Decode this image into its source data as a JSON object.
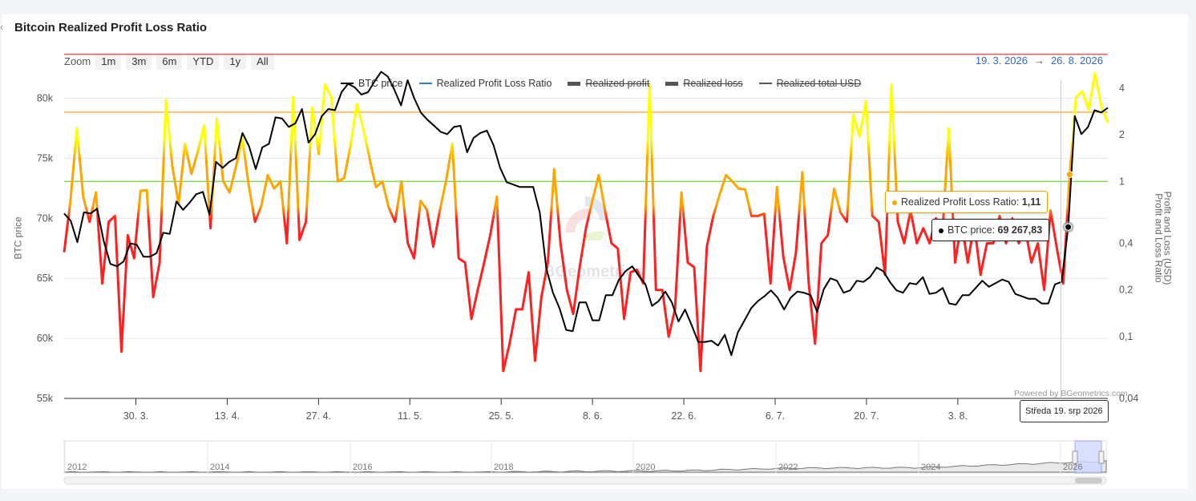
{
  "page": {
    "title": "Bitcoin Realized Profit Loss Ratio",
    "back_glyph": "‹",
    "zoom_label": "Zoom",
    "zoom_buttons": [
      "1m",
      "3m",
      "6m",
      "YTD",
      "1y",
      "All"
    ],
    "range_from": "19. 3. 2026",
    "range_arrow": "→",
    "range_to": "26. 8. 2026",
    "powered_by": "Powered by BGeometrics.com",
    "watermark": "BGeometrics"
  },
  "tooltip": {
    "ratio_label": "Realized Profit Loss Ratio:",
    "ratio_value": "1,11",
    "price_label": "BTC price:",
    "price_value": "69 267,83",
    "date": "Středa 19. srp 2026"
  },
  "colors": {
    "btc": "#000000",
    "ratio_line_legend": "#2f7ed8",
    "high": "#ffff00",
    "mid": "#ffa500",
    "low": "#ff0000",
    "band_red": "#ff5a5a",
    "band_orange": "#ffb347",
    "band_green": "#7ed957"
  },
  "chart_data": {
    "type": "line",
    "title": "Bitcoin Realized Profit Loss Ratio",
    "legend": [
      {
        "name": "BTC price",
        "color": "#000000",
        "visible": true
      },
      {
        "name": "Realized Profit Loss Ratio",
        "color": "#2f7ed8",
        "visible": true
      },
      {
        "name": "Realized profit",
        "color": "#555555",
        "visible": false
      },
      {
        "name": "Realized loss",
        "color": "#555555",
        "visible": false
      },
      {
        "name": "Realized total USD",
        "color": "#555555",
        "visible": false
      }
    ],
    "legend_position": "top-center",
    "x_ticks": [
      "30. 3.",
      "13. 4.",
      "27. 4.",
      "11. 5.",
      "25. 5.",
      "8. 6.",
      "22. 6.",
      "6. 7.",
      "20. 7.",
      "3. 8."
    ],
    "x_tick_days": [
      11,
      25,
      39,
      53,
      67,
      81,
      95,
      109,
      123,
      137
    ],
    "x_range_days": [
      0,
      160
    ],
    "y_left": {
      "label": "BTC price",
      "ticks": [
        "80k",
        "75k",
        "70k",
        "65k",
        "60k",
        "55k"
      ],
      "tick_values": [
        80000,
        75000,
        70000,
        65000,
        60000,
        55000
      ],
      "range": [
        55000,
        81500
      ]
    },
    "y_right": {
      "label": "Profit and Loss (USD)",
      "label2": "Profit and Loss Ratio",
      "scale": "log",
      "ticks": [
        "4",
        "2",
        "1",
        "0,4",
        "0,2",
        "0,1",
        "0,04"
      ],
      "tick_values": [
        4,
        2,
        1,
        0.4,
        0.2,
        0.1,
        0.04
      ],
      "range": [
        0.04,
        4.5
      ]
    },
    "bands": [
      {
        "value": 6.6,
        "color": "#ff5a5a"
      },
      {
        "value": 2.8,
        "color": "#ffb347"
      },
      {
        "value": 1.0,
        "color": "#7ed957"
      }
    ],
    "btc_price": [
      70400,
      69800,
      68000,
      70500,
      70400,
      70800,
      68100,
      66200,
      66000,
      66400,
      67900,
      67800,
      66800,
      66800,
      67100,
      68800,
      68700,
      71400,
      70700,
      71300,
      72000,
      72200,
      70300,
      74700,
      74200,
      74700,
      75000,
      77100,
      76000,
      74100,
      75900,
      76200,
      78400,
      78300,
      77600,
      77900,
      79100,
      76300,
      77000,
      78500,
      79100,
      79000,
      80500,
      81200,
      80900,
      80300,
      80500,
      81400,
      82200,
      81800,
      80700,
      79400,
      81500,
      80000,
      78800,
      78200,
      77700,
      77200,
      77000,
      77600,
      77700,
      75500,
      76700,
      77100,
      77300,
      76100,
      74200,
      73000,
      72800,
      72600,
      72600,
      72600,
      70500,
      65800,
      63800,
      62500,
      60700,
      60600,
      63000,
      63000,
      61500,
      61500,
      63600,
      63600,
      64900,
      65600,
      66000,
      65200,
      64500,
      62700,
      63100,
      63900,
      63000,
      61400,
      62400,
      61100,
      59700,
      59700,
      59800,
      59400,
      60300,
      58600,
      60500,
      61500,
      62500,
      63100,
      63500,
      64000,
      63400,
      62400,
      63400,
      63900,
      63800,
      63600,
      62200,
      64100,
      65000,
      64800,
      63800,
      64000,
      64800,
      64700,
      65100,
      65900,
      65600,
      64700,
      64000,
      63800,
      64600,
      64500,
      65100,
      63700,
      63800,
      64200,
      62900,
      62800,
      63600,
      63600,
      64200,
      64800,
      64300,
      64600,
      64900,
      64700,
      63700,
      63500,
      63300,
      63300,
      62900,
      62900,
      64500,
      64700,
      69268,
      78500,
      77000,
      77600,
      79000,
      78800,
      79200
    ],
    "ratio": [
      0.35,
      0.75,
      2.2,
      0.8,
      0.55,
      0.85,
      0.22,
      0.55,
      0.6,
      0.08,
      0.45,
      0.32,
      0.87,
      0.88,
      0.18,
      0.3,
      3.35,
      1.25,
      0.72,
      1.75,
      1.12,
      1.55,
      2.3,
      0.5,
      2.55,
      1.0,
      0.85,
      1.25,
      1.9,
      0.95,
      0.55,
      0.7,
      1.1,
      0.9,
      1.0,
      0.4,
      3.5,
      0.42,
      0.55,
      3.0,
      1.5,
      4.2,
      3.5,
      1.0,
      1.05,
      1.7,
      3.15,
      2.2,
      1.4,
      0.92,
      1.0,
      0.68,
      0.55,
      1.0,
      0.4,
      0.32,
      0.75,
      0.66,
      0.38,
      0.64,
      1.0,
      1.75,
      0.32,
      0.3,
      0.13,
      0.2,
      0.3,
      0.46,
      0.8,
      0.06,
      0.09,
      0.15,
      0.15,
      0.26,
      0.07,
      0.18,
      0.3,
      1.2,
      0.4,
      0.2,
      0.14,
      0.28,
      0.5,
      0.75,
      1.1,
      0.65,
      0.4,
      0.37,
      0.13,
      0.26,
      0.27,
      0.22,
      4.2,
      0.2,
      0.2,
      0.1,
      0.15,
      0.85,
      0.3,
      0.28,
      0.06,
      0.38,
      0.6,
      0.82,
      1.1,
      1.0,
      0.9,
      0.89,
      0.6,
      0.6,
      0.62,
      0.22,
      0.92,
      0.33,
      0.2,
      0.35,
      1.15,
      0.22,
      0.09,
      0.4,
      0.45,
      0.9,
      0.63,
      0.55,
      2.7,
      1.95,
      3.3,
      0.6,
      0.55,
      0.25,
      4.2,
      0.55,
      0.4,
      0.65,
      0.4,
      0.5,
      0.4,
      0.58,
      0.45,
      2.2,
      0.3,
      0.55,
      0.3,
      0.53,
      0.25,
      0.4,
      0.4,
      0.6,
      0.4,
      0.58,
      0.4,
      0.5,
      0.3,
      0.4,
      0.2,
      0.65,
      0.37,
      0.22,
      1.11,
      3.5,
      3.8,
      2.9,
      5.0,
      3.0,
      2.4
    ]
  }
}
